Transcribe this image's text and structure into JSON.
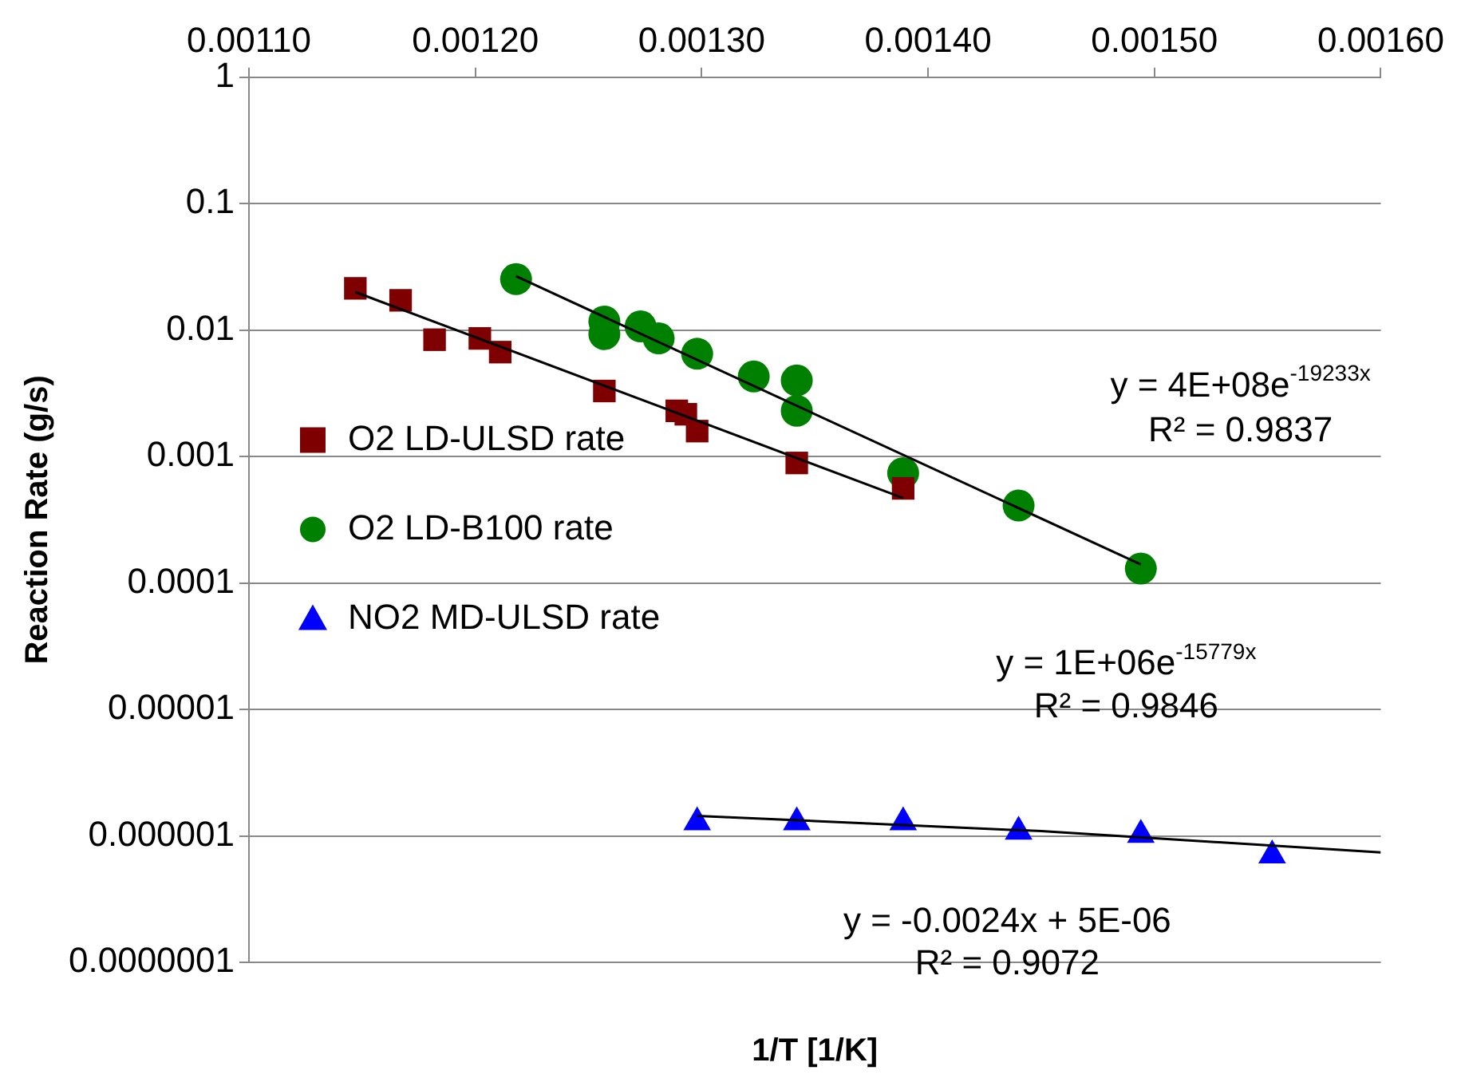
{
  "chart_data": {
    "type": "scatter",
    "xlabel": "1/T [1/K]",
    "ylabel": "Reaction Rate (g/s)",
    "log": "y",
    "grid": "y",
    "legend": "left",
    "xlim": [
      0.0011,
      0.0016
    ],
    "xticks": [
      {
        "value": 0.0011,
        "label": "0.00110"
      },
      {
        "value": 0.0012,
        "label": "0.00120"
      },
      {
        "value": 0.0013,
        "label": "0.00130"
      },
      {
        "value": 0.0014,
        "label": "0.00140"
      },
      {
        "value": 0.0015,
        "label": "0.00150"
      },
      {
        "value": 0.0016,
        "label": "0.00160"
      }
    ],
    "ylim": [
      1e-07,
      1
    ],
    "yticks": [
      1,
      0.1,
      0.01,
      0.001,
      0.0001,
      {
        "value": 1e-05,
        "label": "0.00001"
      },
      {
        "value": 1e-06,
        "label": "0.000001"
      },
      {
        "value": 1e-07,
        "label": "0.0000001"
      }
    ],
    "series": [
      {
        "name": "O2 LD-ULSD rate",
        "color": "#7f0000",
        "marker": "square",
        "x": [
          0.001147,
          0.001167,
          0.001182,
          0.001202,
          0.001211,
          0.001257,
          0.001289,
          0.001293,
          0.001298,
          0.001342,
          0.001389
        ],
        "values": [
          0.0214,
          0.0172,
          0.0084,
          0.0086,
          0.0067,
          0.0033,
          0.0023,
          0.00216,
          0.00159,
          0.00089,
          0.00056
        ]
      },
      {
        "name": "O2 LD-B100 rate",
        "color": "#008000",
        "marker": "circle",
        "x": [
          0.001218,
          0.001257,
          0.001257,
          0.001273,
          0.001281,
          0.001298,
          0.001323,
          0.001342,
          0.001342,
          0.001389,
          0.00144,
          0.001494
        ],
        "values": [
          0.0253,
          0.0117,
          0.0093,
          0.0107,
          0.0086,
          0.0065,
          0.0043,
          0.004,
          0.0023,
          0.00074,
          0.00041,
          0.00013
        ]
      },
      {
        "name": "NO2 MD-ULSD rate",
        "color": "#0000ff",
        "marker": "triangle",
        "x": [
          0.001298,
          0.001342,
          0.001389,
          0.00144,
          0.001494,
          0.001552
        ],
        "values": [
          1.28e-06,
          1.28e-06,
          1.28e-06,
          1.08e-06,
          1.02e-06,
          7e-07
        ]
      },
      {
        "type": "line",
        "color": "#000000",
        "marker": "none",
        "x": [
          0.001147,
          0.001389
        ],
        "values": [
          0.02,
          0.00047
        ]
      },
      {
        "type": "line",
        "color": "#000000",
        "marker": "none",
        "x": [
          0.001218,
          0.001494
        ],
        "values": [
          0.0267,
          0.00014
        ]
      },
      {
        "type": "line",
        "color": "#000000",
        "marker": "none",
        "x": [
          0.001298,
          0.00145,
          0.0016
        ],
        "values": [
          1.44e-06,
          1.09e-06,
          7.4e-07
        ]
      }
    ],
    "annotations": [
      "y = 4E+08e$^{-19233x}$",
      "R² = 0.9837",
      "y = 1E+06e$^{-15779x}$",
      "R² = 0.9846",
      "y = -0.0024x + 5E-06",
      "R² = 0.9072"
    ]
  }
}
